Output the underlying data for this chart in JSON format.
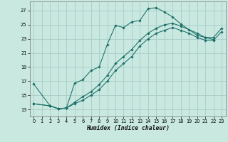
{
  "xlabel": "Humidex (Indice chaleur)",
  "bg_color": "#c8e8e0",
  "grid_color": "#a8ccc8",
  "line_color": "#1a6e68",
  "xlim": [
    -0.5,
    23.5
  ],
  "ylim": [
    12.0,
    28.3
  ],
  "yticks": [
    13,
    15,
    17,
    19,
    21,
    23,
    25,
    27
  ],
  "xticks": [
    0,
    1,
    2,
    3,
    4,
    5,
    6,
    7,
    8,
    9,
    10,
    11,
    12,
    13,
    14,
    15,
    16,
    17,
    18,
    19,
    20,
    21,
    22,
    23
  ],
  "curve1_x": [
    0,
    2,
    3,
    4,
    5,
    6,
    7,
    8,
    9,
    10,
    11,
    12,
    13,
    14,
    15,
    16,
    17,
    18,
    20,
    21,
    22
  ],
  "curve1_y": [
    16.6,
    13.5,
    13.1,
    13.2,
    16.7,
    17.2,
    18.5,
    19.0,
    22.2,
    24.9,
    24.6,
    25.4,
    25.6,
    27.3,
    27.4,
    26.8,
    26.1,
    25.1,
    23.5,
    23.2,
    22.9
  ],
  "curve2_x": [
    0,
    2,
    3,
    4,
    5,
    6,
    7,
    8,
    9,
    10,
    11,
    12,
    13,
    14,
    15,
    16,
    17,
    18,
    19,
    20,
    21,
    22,
    23
  ],
  "curve2_y": [
    13.8,
    13.5,
    13.1,
    13.2,
    14.0,
    14.8,
    15.5,
    16.5,
    17.8,
    19.5,
    20.5,
    21.5,
    22.8,
    23.8,
    24.5,
    25.0,
    25.2,
    24.8,
    24.3,
    23.8,
    23.2,
    23.2,
    24.5
  ],
  "curve3_x": [
    0,
    2,
    3,
    4,
    5,
    6,
    7,
    8,
    9,
    10,
    11,
    12,
    13,
    14,
    15,
    16,
    17,
    18,
    19,
    20,
    21,
    22,
    23
  ],
  "curve3_y": [
    13.8,
    13.5,
    13.1,
    13.2,
    13.8,
    14.3,
    15.0,
    15.8,
    17.0,
    18.5,
    19.5,
    20.5,
    22.0,
    23.0,
    23.8,
    24.2,
    24.6,
    24.2,
    23.8,
    23.2,
    22.8,
    22.8,
    24.0
  ]
}
